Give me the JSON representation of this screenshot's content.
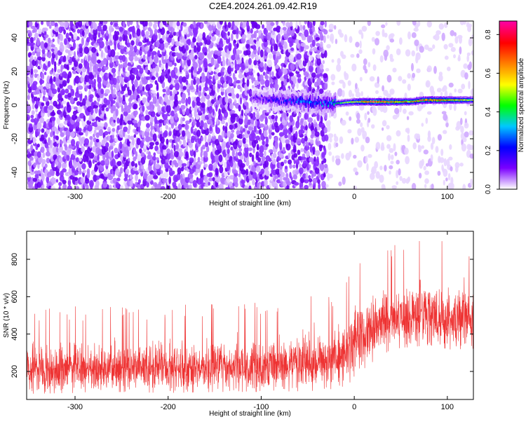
{
  "figure": {
    "title": "C2E4.2024.261.09.42.R19"
  },
  "chart_data": [
    {
      "type": "heatmap",
      "xlabel": "Height of straight line (km)",
      "ylabel": "Frequency (Hz)",
      "xlim": [
        -352,
        128
      ],
      "ylim": [
        -50,
        50
      ],
      "xticks": [
        -300,
        -200,
        -100,
        0,
        100
      ],
      "yticks": [
        -40,
        -20,
        0,
        20,
        40
      ],
      "grid": false,
      "colorbar": {
        "label": "Normalized spectral amplitude",
        "range": [
          0,
          0.87
        ],
        "ticks": [
          "0.0",
          "0.2",
          "0.4",
          "0.6",
          "0.8"
        ],
        "colormap": [
          "#ffffff",
          "#7a00ff",
          "#0000ff",
          "#00c8ff",
          "#00ff00",
          "#ffff00",
          "#ff8000",
          "#ff0000",
          "#ff00a0"
        ]
      },
      "signal": {
        "description_points_x": [
          -110,
          -50,
          -30,
          -20,
          0,
          20,
          60,
          75,
          100,
          128
        ],
        "center_freq_hz": [
          4,
          2,
          1,
          1,
          2,
          2,
          2,
          3,
          3,
          3
        ],
        "peak_amplitude": [
          0.12,
          0.3,
          0.3,
          0.4,
          0.6,
          0.85,
          0.65,
          0.8,
          0.7,
          0.55
        ]
      },
      "noise_boundary_x": -30
    },
    {
      "type": "line",
      "xlabel": "Height of straight line (km)",
      "ylabel": "SNR (10 * v/v)",
      "xlim": [
        -352,
        128
      ],
      "ylim": [
        50,
        950
      ],
      "xticks": [
        -300,
        -200,
        -100,
        0,
        100
      ],
      "yticks": [
        200,
        400,
        600,
        800
      ],
      "grid": false,
      "series_color": "#ee3333",
      "envelope": {
        "x": [
          -352,
          -300,
          -250,
          -200,
          -150,
          -100,
          -50,
          -20,
          0,
          20,
          40,
          60,
          80,
          100,
          128
        ],
        "mean": [
          215,
          210,
          215,
          215,
          225,
          230,
          245,
          260,
          370,
          450,
          480,
          490,
          495,
          485,
          475
        ],
        "low": [
          80,
          85,
          90,
          85,
          90,
          90,
          95,
          100,
          150,
          250,
          320,
          330,
          340,
          320,
          300
        ],
        "high": [
          470,
          470,
          480,
          470,
          490,
          500,
          520,
          540,
          700,
          760,
          800,
          830,
          840,
          820,
          780
        ]
      }
    }
  ]
}
